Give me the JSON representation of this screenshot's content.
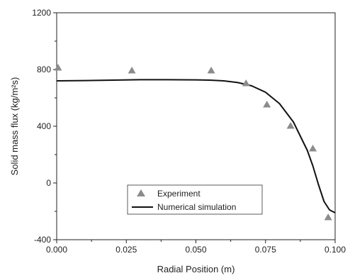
{
  "chart_data": {
    "type": "scatter",
    "xlabel": "Radial Position (m)",
    "ylabel": "Solid mass flux (kg/m²s)",
    "xlim": [
      0.0,
      0.1
    ],
    "ylim": [
      -400,
      1200
    ],
    "x_ticks": [
      0.0,
      0.025,
      0.05,
      0.075,
      0.1
    ],
    "x_tick_labels": [
      "0.000",
      "0.025",
      "0.050",
      "0.075",
      "0.100"
    ],
    "y_ticks": [
      -400,
      0,
      400,
      800,
      1200
    ],
    "y_tick_labels": [
      "-400",
      "0",
      "400",
      "800",
      "1200"
    ],
    "grid": false,
    "legend_position": "bottom-center",
    "series": [
      {
        "name": "Experiment",
        "kind": "markers",
        "marker": "triangle",
        "color": "#8c8c8c",
        "x": [
          0.0005,
          0.027,
          0.0555,
          0.068,
          0.0755,
          0.084,
          0.092,
          0.0975
        ],
        "y": [
          815,
          795,
          795,
          705,
          555,
          405,
          245,
          -240
        ]
      },
      {
        "name": "Numerical simulation",
        "kind": "line",
        "color": "#111111",
        "x": [
          0.0,
          0.01,
          0.02,
          0.03,
          0.04,
          0.05,
          0.055,
          0.06,
          0.065,
          0.07,
          0.075,
          0.08,
          0.085,
          0.09,
          0.092,
          0.094,
          0.096,
          0.098,
          0.1
        ],
        "y": [
          720,
          722,
          725,
          728,
          728,
          727,
          725,
          720,
          708,
          685,
          640,
          560,
          430,
          230,
          120,
          -10,
          -130,
          -190,
          -210
        ]
      }
    ]
  }
}
